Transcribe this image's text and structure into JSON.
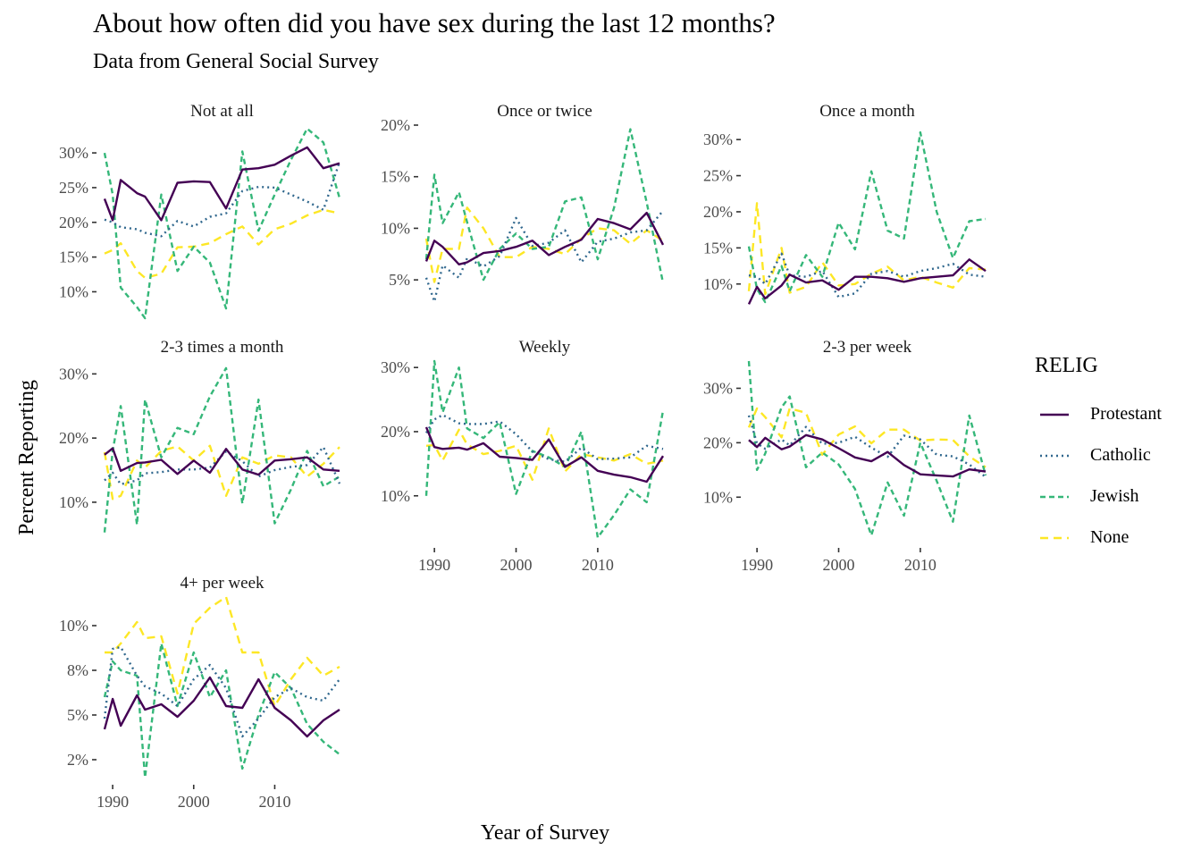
{
  "title": "About how often did you have sex during the last 12 months?",
  "subtitle": "Data from General Social Survey",
  "legend": {
    "title": "RELIG",
    "items": [
      "Protestant",
      "Catholic",
      "Jewish",
      "None"
    ]
  },
  "colors": {
    "Protestant": "#440154",
    "Catholic": "#31688e",
    "Jewish": "#35b779",
    "None": "#fde725",
    "axis_text": "#4d4d4d"
  },
  "chart_data": {
    "type": "line",
    "xlabel": "Year of Survey",
    "ylabel": "Percent Reporting",
    "x_ticks": [
      1990,
      2000,
      2010
    ],
    "x_tick_labels": [
      "1990",
      "2000",
      "2010"
    ],
    "x": [
      1989,
      1990,
      1991,
      1993,
      1994,
      1996,
      1998,
      2000,
      2002,
      2004,
      2006,
      2008,
      2010,
      2012,
      2014,
      2016,
      2018
    ],
    "grid": false,
    "legend_position": "right",
    "facets": [
      {
        "label": "Not at all",
        "y_ticks": [
          10,
          15,
          20,
          25,
          30
        ],
        "y_tick_labels": [
          "10%",
          "15%",
          "20%",
          "25%",
          "30%"
        ],
        "ylim": [
          8,
          34
        ],
        "series": [
          {
            "name": "Protestant",
            "values": [
              23.4,
              20.3,
              26.1,
              24.2,
              23.7,
              20.3,
              25.7,
              25.9,
              25.8,
              22.0,
              27.6,
              27.8,
              28.3,
              29.6,
              30.8,
              27.8,
              28.5
            ]
          },
          {
            "name": "Catholic",
            "values": [
              20.4,
              20.0,
              19.3,
              19.0,
              18.5,
              18.0,
              20.2,
              19.4,
              20.8,
              21.3,
              24.5,
              25.1,
              25.0,
              24.0,
              23.0,
              21.8,
              28.7
            ]
          },
          {
            "name": "Jewish",
            "values": [
              30.0,
              24.0,
              10.6,
              7.8,
              6.2,
              24.0,
              13.0,
              16.5,
              14.2,
              7.6,
              30.2,
              18.8,
              24.0,
              29.0,
              33.5,
              31.5,
              23.5
            ]
          },
          {
            "name": "None",
            "values": [
              15.5,
              16.0,
              17.0,
              13.0,
              12.0,
              12.6,
              16.4,
              16.5,
              17.0,
              18.3,
              19.4,
              16.8,
              19.0,
              19.8,
              21.0,
              21.8,
              21.3
            ]
          }
        ]
      },
      {
        "label": "Once or twice",
        "y_ticks": [
          5,
          10,
          15,
          20
        ],
        "y_tick_labels": [
          "5%",
          "10%",
          "15%",
          "20%"
        ],
        "ylim": [
          2.5,
          20
        ],
        "series": [
          {
            "name": "Protestant",
            "values": [
              6.8,
              8.8,
              8.2,
              6.5,
              6.7,
              7.6,
              7.8,
              8.2,
              8.8,
              7.4,
              8.2,
              8.9,
              10.9,
              10.5,
              9.9,
              11.5,
              8.4
            ]
          },
          {
            "name": "Catholic",
            "values": [
              5.2,
              2.9,
              6.4,
              5.2,
              7.1,
              6.3,
              7.3,
              11.0,
              8.3,
              8.6,
              9.8,
              6.7,
              8.7,
              9.0,
              9.6,
              9.8,
              11.7
            ]
          },
          {
            "name": "Jewish",
            "values": [
              7.0,
              15.2,
              10.5,
              13.5,
              10.6,
              5.0,
              8.0,
              9.5,
              8.0,
              8.2,
              12.6,
              13.0,
              7.0,
              12.0,
              19.6,
              12.5,
              4.7
            ]
          },
          {
            "name": "None",
            "values": [
              9.0,
              4.8,
              8.0,
              8.0,
              12.0,
              10.0,
              7.2,
              7.2,
              8.2,
              8.0,
              7.5,
              9.0,
              10.0,
              9.8,
              8.5,
              9.8,
              8.8
            ]
          }
        ]
      },
      {
        "label": "Once a month",
        "y_ticks": [
          10,
          15,
          20,
          25,
          30
        ],
        "y_tick_labels": [
          "10%",
          "15%",
          "20%",
          "25%",
          "30%"
        ],
        "ylim": [
          7,
          32
        ],
        "series": [
          {
            "name": "Protestant",
            "values": [
              7.2,
              9.6,
              8.0,
              9.8,
              11.3,
              10.2,
              10.5,
              9.2,
              11.0,
              11.0,
              10.8,
              10.3,
              10.8,
              11.0,
              11.2,
              13.4,
              11.8
            ]
          },
          {
            "name": "Catholic",
            "values": [
              11.2,
              11.0,
              10.0,
              14.2,
              11.2,
              11.0,
              11.8,
              8.2,
              8.7,
              11.4,
              11.8,
              11.0,
              11.8,
              12.2,
              12.8,
              11.3,
              11.0
            ]
          },
          {
            "name": "Jewish",
            "values": [
              15.2,
              9.3,
              7.5,
              12.5,
              9.0,
              14.0,
              11.0,
              18.5,
              14.8,
              25.6,
              17.4,
              16.3,
              31.0,
              20.0,
              13.6,
              18.7,
              19.0
            ]
          },
          {
            "name": "None",
            "values": [
              9.0,
              21.2,
              8.6,
              15.0,
              8.8,
              9.6,
              13.0,
              9.8,
              10.0,
              11.4,
              12.4,
              10.5,
              11.0,
              10.2,
              9.5,
              12.2,
              12.0
            ]
          }
        ]
      },
      {
        "label": "2-3 times a month",
        "y_ticks": [
          10,
          20,
          30
        ],
        "y_tick_labels": [
          "10%",
          "20%",
          "30%"
        ],
        "ylim": [
          4,
          32
        ],
        "series": [
          {
            "name": "Protestant",
            "values": [
              17.4,
              18.4,
              14.9,
              16.1,
              16.2,
              16.6,
              14.4,
              16.5,
              14.6,
              18.3,
              15.1,
              14.3,
              16.5,
              16.7,
              17.0,
              15.1,
              14.9
            ]
          },
          {
            "name": "Catholic",
            "values": [
              13.4,
              14.6,
              12.8,
              13.4,
              14.5,
              14.7,
              15.1,
              15.1,
              15.4,
              17.9,
              16.4,
              14.0,
              15.0,
              15.5,
              15.8,
              18.6,
              12.9
            ]
          },
          {
            "name": "Jewish",
            "values": [
              5.3,
              18.0,
              25.0,
              6.5,
              26.0,
              17.0,
              21.6,
              20.6,
              26.5,
              30.9,
              9.8,
              26.0,
              6.7,
              12.0,
              18.0,
              12.5,
              14.0
            ]
          },
          {
            "name": "None",
            "values": [
              17.8,
              10.5,
              11.0,
              16.5,
              15.4,
              18.0,
              18.7,
              16.5,
              18.8,
              11.0,
              17.0,
              16.0,
              17.3,
              17.0,
              14.0,
              16.0,
              18.6
            ]
          }
        ]
      },
      {
        "label": "Weekly",
        "y_ticks": [
          10,
          20,
          30
        ],
        "y_tick_labels": [
          "10%",
          "20%",
          "30%"
        ],
        "ylim": [
          3,
          31
        ],
        "series": [
          {
            "name": "Protestant",
            "values": [
              20.7,
              17.6,
              17.3,
              17.5,
              17.2,
              18.2,
              16.1,
              15.9,
              15.6,
              18.8,
              14.5,
              16.0,
              13.9,
              13.3,
              12.9,
              12.2,
              16.2
            ]
          },
          {
            "name": "Catholic",
            "values": [
              19.8,
              21.9,
              22.6,
              21.3,
              21.2,
              21.2,
              21.6,
              19.6,
              16.9,
              15.7,
              15.3,
              17.5,
              15.7,
              15.8,
              16.0,
              17.8,
              17.3
            ]
          },
          {
            "name": "Jewish",
            "values": [
              10.0,
              31.0,
              23.0,
              30.0,
              20.5,
              19.0,
              21.5,
              10.3,
              17.0,
              16.0,
              14.5,
              20.0,
              3.5,
              7.0,
              11.0,
              9.0,
              23.3
            ]
          },
          {
            "name": "None",
            "values": [
              17.8,
              17.9,
              15.5,
              20.3,
              18.0,
              16.5,
              17.0,
              17.8,
              12.5,
              20.5,
              13.8,
              16.5,
              16.0,
              15.5,
              16.5,
              15.0,
              15.5
            ]
          }
        ]
      },
      {
        "label": "2-3 per week",
        "y_ticks": [
          10,
          20,
          30
        ],
        "y_tick_labels": [
          "10%",
          "20%",
          "30%"
        ],
        "ylim": [
          2,
          35
        ],
        "series": [
          {
            "name": "Protestant",
            "values": [
              20.5,
              19.2,
              20.9,
              18.8,
              19.3,
              21.4,
              20.6,
              19.0,
              17.3,
              16.6,
              18.3,
              15.9,
              14.2,
              14.0,
              13.8,
              15.1,
              14.7
            ]
          },
          {
            "name": "Catholic",
            "values": [
              25.0,
              19.9,
              18.9,
              20.6,
              19.5,
              22.9,
              19.8,
              20.0,
              21.1,
              19.1,
              17.4,
              21.3,
              20.6,
              17.8,
              17.5,
              16.0,
              13.7
            ]
          },
          {
            "name": "Jewish",
            "values": [
              35.0,
              15.0,
              18.0,
              26.5,
              28.5,
              15.5,
              18.2,
              16.0,
              11.5,
              3.0,
              12.7,
              6.6,
              20.0,
              13.0,
              5.5,
              25.0,
              14.0
            ]
          },
          {
            "name": "None",
            "values": [
              22.8,
              26.3,
              24.7,
              21.0,
              26.3,
              25.5,
              17.8,
              21.5,
              23.0,
              19.9,
              22.4,
              22.4,
              20.4,
              20.6,
              20.5,
              17.5,
              15.5
            ]
          }
        ]
      },
      {
        "label": "4+ per week",
        "y_ticks": [
          2.5,
          5,
          7.5,
          10
        ],
        "y_tick_labels": [
          "2%",
          "5%",
          "8%",
          "10%"
        ],
        "ylim": [
          1.5,
          11.6
        ],
        "series": [
          {
            "name": "Protestant",
            "values": [
              4.2,
              5.9,
              4.4,
              6.1,
              5.3,
              5.6,
              4.9,
              5.8,
              7.1,
              5.5,
              5.4,
              7.0,
              5.4,
              4.7,
              3.8,
              4.7,
              5.3
            ]
          },
          {
            "name": "Catholic",
            "values": [
              4.8,
              8.7,
              8.8,
              7.2,
              6.6,
              6.2,
              5.5,
              7.0,
              7.8,
              6.5,
              3.8,
              4.8,
              6.0,
              6.5,
              6.0,
              5.8,
              7.0
            ]
          },
          {
            "name": "Jewish",
            "values": [
              6.0,
              8.0,
              7.5,
              7.2,
              1.5,
              9.0,
              5.5,
              8.5,
              6.0,
              7.5,
              2.0,
              5.0,
              7.4,
              6.5,
              4.5,
              3.5,
              2.8
            ]
          },
          {
            "name": "None",
            "values": [
              8.5,
              8.5,
              9.0,
              10.2,
              9.3,
              9.4,
              6.2,
              10.1,
              11.0,
              11.6,
              8.5,
              8.5,
              5.5,
              7.0,
              8.2,
              7.2,
              7.7
            ]
          }
        ]
      }
    ]
  }
}
